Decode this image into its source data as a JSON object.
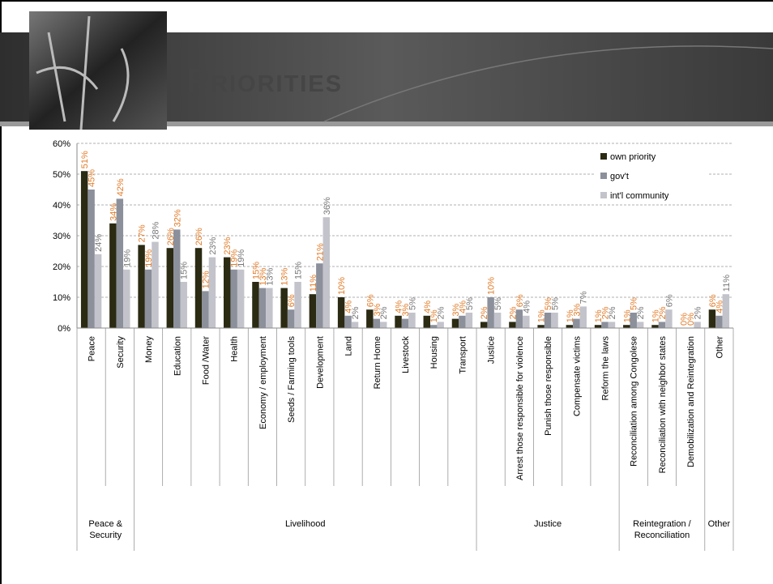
{
  "title": "Priorities",
  "chart_data": {
    "type": "bar",
    "categories": [
      "Peace",
      "Security",
      "Money",
      "Education",
      "Food /Water",
      "Health",
      "Economy / employment",
      "Seeds / Farming tools",
      "Development",
      "Land",
      "Return Home",
      "Livestock",
      "Housing",
      "Transport",
      "Justice",
      "Arrest those responsible for violence",
      "Punish those responsible",
      "Compensate victims",
      "Reform the laws",
      "Reconciliation among Congolese",
      "Reconciliation with neighbor states",
      "Demobilization and Reintegration",
      "Other"
    ],
    "groups": [
      {
        "label": "Peace & Security",
        "size": 2
      },
      {
        "label": "Livelihood",
        "size": 12
      },
      {
        "label": "Justice",
        "size": 5
      },
      {
        "label": "Reintegration / Reconciliation",
        "size": 3
      },
      {
        "label": "Other",
        "size": 1
      }
    ],
    "series": [
      {
        "name": "own priority",
        "color": "#2b2a12",
        "label_color": "#e07b28",
        "values": [
          51,
          34,
          27,
          26,
          26,
          23,
          15,
          13,
          11,
          10,
          6,
          4,
          4,
          3,
          2,
          2,
          1,
          1,
          1,
          1,
          1,
          0,
          6
        ],
        "value_labels": [
          "51%",
          "34%",
          "27%",
          "26%",
          "26%",
          "23%",
          "15%",
          "13%",
          "11%",
          "10%",
          "6%",
          "4%",
          "4%",
          "3%",
          "2%",
          "2%",
          "1%",
          "1%",
          "1%",
          "1%",
          "1%",
          "0%",
          "6%"
        ]
      },
      {
        "name": "gov't",
        "color": "#8b909b",
        "label_color": "#e07b28",
        "values": [
          45,
          42,
          19,
          32,
          12,
          19,
          13,
          6,
          21,
          4,
          3,
          3,
          1,
          4,
          10,
          6,
          5,
          3,
          2,
          5,
          2,
          0,
          4
        ],
        "value_labels": [
          "45%",
          "42%",
          "19%",
          "32%",
          "12%",
          "19%",
          "13%",
          "6%",
          "21%",
          "4%",
          "3%",
          "3%",
          "1%",
          "4%",
          "10%",
          "6%",
          "5%",
          "3%",
          "2%",
          "5%",
          "2%",
          "0%",
          "4%"
        ]
      },
      {
        "name": "int'l community",
        "color": "#c3c3cb",
        "label_color": "#777777",
        "values": [
          24,
          19,
          28,
          15,
          23,
          19,
          13,
          15,
          36,
          2,
          2,
          5,
          2,
          5,
          5,
          4,
          5,
          7,
          2,
          2,
          6,
          2,
          11
        ],
        "value_labels": [
          "24%",
          "19%",
          "28%",
          "15%",
          "23%",
          "19%",
          "13%",
          "15%",
          "36%",
          "2%",
          "2%",
          "5%",
          "2%",
          "5%",
          "5%",
          "4%",
          "5%",
          "7%",
          "2%",
          "2%",
          "6%",
          "2%",
          "11%"
        ]
      }
    ],
    "ylim": [
      0,
      60
    ],
    "yticks": [
      {
        "value": 0,
        "label": "0%"
      },
      {
        "value": 10,
        "label": "10%"
      },
      {
        "value": 20,
        "label": "20%"
      },
      {
        "value": 30,
        "label": "30%"
      },
      {
        "value": 40,
        "label": "40%"
      },
      {
        "value": 50,
        "label": "50%"
      },
      {
        "value": 60,
        "label": "60%"
      }
    ],
    "grid": true,
    "legend": "top-right"
  }
}
